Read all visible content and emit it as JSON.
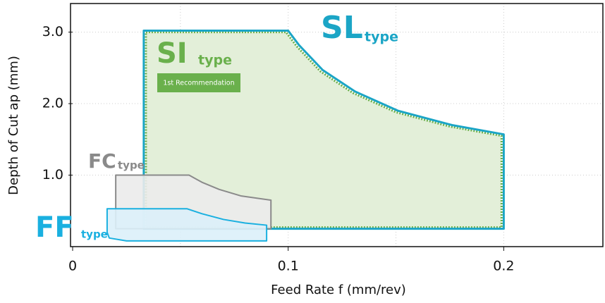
{
  "chart_data": {
    "type": "region",
    "xlabel": "Feed Rate f (mm/rev)",
    "ylabel": "Depth of Cut ap (mm)",
    "xlim": [
      0,
      0.246
    ],
    "ylim": [
      0,
      3.4
    ],
    "xticks": [
      0,
      0.1,
      0.2
    ],
    "yticks": [
      {
        "value": 1.0,
        "label": "1.0"
      },
      {
        "value": 2.0,
        "label": "2.0"
      },
      {
        "value": 3.0,
        "label": "3.0"
      }
    ],
    "xgrid": [
      0.05,
      0.1,
      0.15,
      0.2
    ],
    "grid": true,
    "series": [
      {
        "name": "SI",
        "suffix": "type",
        "badge": "1st Recommendation",
        "color": "#6ab04c",
        "fill": "#e3efd9",
        "x": [
          0.034,
          0.099,
          0.104,
          0.115,
          0.13,
          0.15,
          0.175,
          0.199,
          0.199,
          0.034
        ],
        "y": [
          3.0,
          3.0,
          2.8,
          2.45,
          2.15,
          1.88,
          1.68,
          1.55,
          0.27,
          0.27
        ]
      },
      {
        "name": "SL",
        "suffix": "type",
        "color": "#1ba5c6",
        "x": [
          0.033,
          0.1,
          0.105,
          0.116,
          0.131,
          0.151,
          0.176,
          0.2,
          0.2,
          0.033
        ],
        "y": [
          3.02,
          3.02,
          2.82,
          2.47,
          2.17,
          1.9,
          1.7,
          1.57,
          0.25,
          0.25
        ]
      },
      {
        "name": "FC",
        "suffix": "type",
        "color": "#8a8a8a",
        "fill": "#ebebeb",
        "x": [
          0.02,
          0.054,
          0.06,
          0.068,
          0.078,
          0.092,
          0.092,
          0.02
        ],
        "y": [
          1.0,
          1.0,
          0.9,
          0.8,
          0.71,
          0.65,
          0.25,
          0.25
        ]
      },
      {
        "name": "FF",
        "suffix": "type",
        "color": "#1ab0e0",
        "fill": "#dcf0fa",
        "x": [
          0.016,
          0.053,
          0.06,
          0.07,
          0.08,
          0.09,
          0.09,
          0.025,
          0.017,
          0.016
        ],
        "y": [
          0.53,
          0.53,
          0.46,
          0.38,
          0.33,
          0.3,
          0.08,
          0.08,
          0.12,
          0.2
        ]
      }
    ]
  }
}
